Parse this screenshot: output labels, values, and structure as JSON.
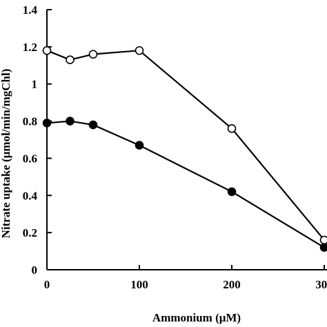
{
  "chart_data": {
    "type": "line",
    "xlabel": "Ammonium (μM)",
    "ylabel": "Nitrate uptake (μmol/min/mgChl)",
    "xlim": [
      0,
      300
    ],
    "ylim": [
      0,
      1.4
    ],
    "x_ticks": [
      "0",
      "100",
      "200",
      "300"
    ],
    "y_ticks": [
      "0",
      "0.2",
      "0.4",
      "0.6",
      "0.8",
      "1",
      "1.2",
      "1.4"
    ],
    "grid": false,
    "series": [
      {
        "marker": "open-circle",
        "x": [
          0,
          25,
          50,
          100,
          200,
          300
        ],
        "y": [
          1.18,
          1.13,
          1.16,
          1.18,
          0.76,
          0.16
        ]
      },
      {
        "marker": "filled-circle",
        "x": [
          0,
          25,
          50,
          100,
          200,
          300
        ],
        "y": [
          0.79,
          0.8,
          0.78,
          0.67,
          0.42,
          0.12
        ]
      }
    ]
  }
}
